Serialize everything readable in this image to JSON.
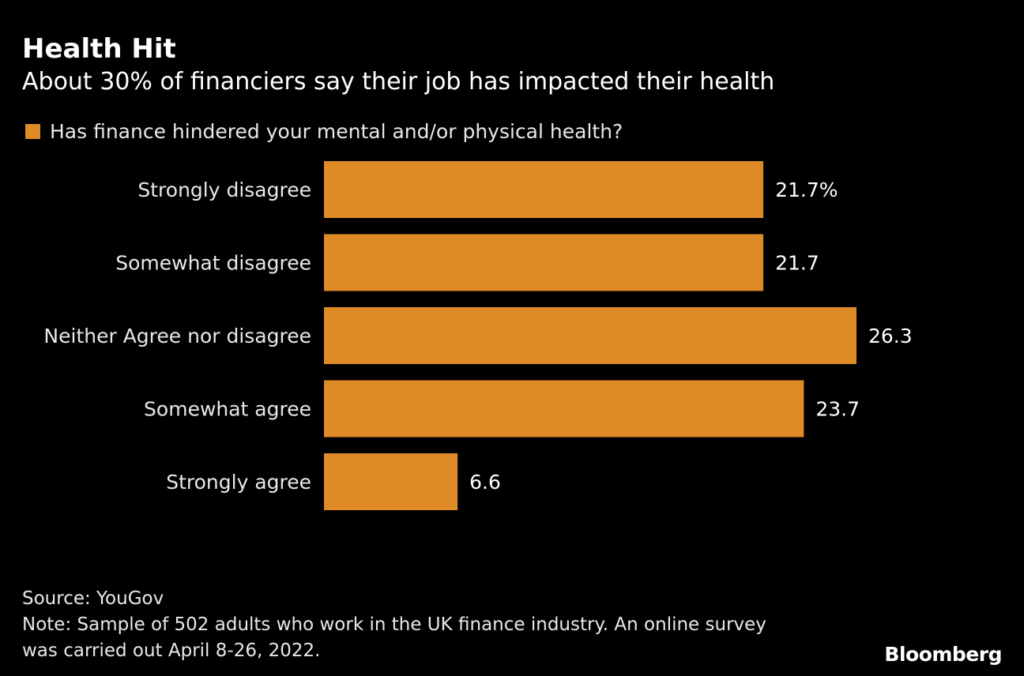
{
  "title": "Health Hit",
  "subtitle": "About 30% of financiers say their job has impacted their health",
  "source": "Source: YouGov",
  "note_line1": "Note: Sample of 502 adults who work in the UK finance industry. An online survey",
  "note_line2": "was carried out April 8-26, 2022.",
  "logo": "Bloomberg",
  "chart_data": {
    "type": "bar",
    "orientation": "horizontal",
    "title": "Health Hit",
    "legend": [
      "Has finance hindered your mental and/or physical health?"
    ],
    "legend_placement": "top-left",
    "categories": [
      "Strongly disagree",
      "Somewhat disagree",
      "Neither Agree nor disagree",
      "Somewhat agree",
      "Strongly agree"
    ],
    "values": [
      21.7,
      21.7,
      26.3,
      23.7,
      6.6
    ],
    "value_labels": [
      "21.7%",
      "21.7",
      "26.3",
      "23.7",
      "6.6"
    ],
    "xlim": [
      0,
      26.3
    ],
    "grid": false,
    "color": "#DE8A26"
  }
}
